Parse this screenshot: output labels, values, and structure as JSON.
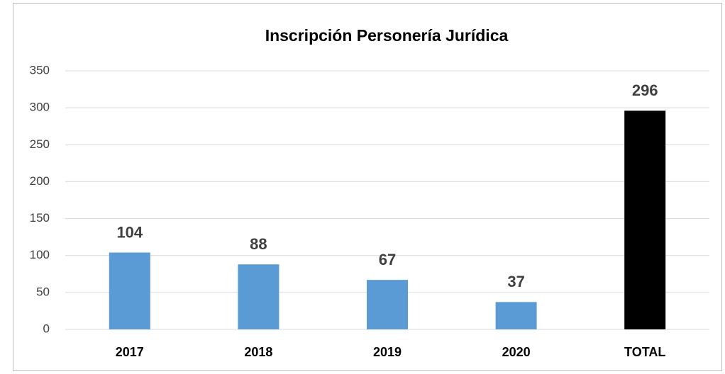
{
  "chart_data": {
    "type": "bar",
    "title": "Inscripción Personería Jurídica",
    "categories": [
      "2017",
      "2018",
      "2019",
      "2020",
      "TOTAL"
    ],
    "values": [
      104,
      88,
      67,
      37,
      296
    ],
    "colors": [
      "#5b9bd5",
      "#5b9bd5",
      "#5b9bd5",
      "#5b9bd5",
      "#000000"
    ],
    "ylim": [
      0,
      350
    ],
    "yticks": [
      0,
      50,
      100,
      150,
      200,
      250,
      300,
      350
    ],
    "grid": true
  }
}
